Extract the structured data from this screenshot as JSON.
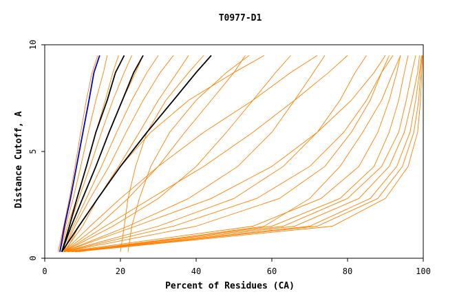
{
  "chart_data": {
    "type": "line",
    "title": "T0977-D1",
    "xlabel": "Percent of Residues (CA)",
    "ylabel": "Distance Cutoff, A",
    "xlim": [
      0,
      100
    ],
    "ylim": [
      0,
      10
    ],
    "xticks": [
      "0",
      "20",
      "40",
      "60",
      "80",
      "100"
    ],
    "yticks": [
      "0",
      "5",
      "10"
    ],
    "grid": false,
    "legend": "none",
    "series_colors": {
      "models": "#ff8000",
      "highlight_blue": "#0000cc",
      "highlight_black": "#000000"
    },
    "series": [
      {
        "color": "#ff8000",
        "x": [
          3.5,
          5,
          6.5,
          8,
          9.5,
          11,
          12.5,
          14
        ],
        "y": [
          0.3,
          1.5,
          2.8,
          4.3,
          5.9,
          7.4,
          8.7,
          9.5
        ]
      },
      {
        "color": "#ff8000",
        "x": [
          4,
          5.5,
          7.5,
          9.5,
          11.5,
          13.5,
          15.5,
          16.5
        ],
        "y": [
          0.3,
          1.5,
          2.8,
          4.3,
          5.9,
          7.4,
          8.7,
          9.5
        ]
      },
      {
        "color": "#ff8000",
        "x": [
          4,
          6,
          8.5,
          11,
          13.5,
          16,
          18,
          19.5
        ],
        "y": [
          0.3,
          1.5,
          2.8,
          4.3,
          5.9,
          7.4,
          8.7,
          9.5
        ]
      },
      {
        "color": "#ff8000",
        "x": [
          4.5,
          6.5,
          9,
          12,
          15,
          18,
          21,
          23
        ],
        "y": [
          0.3,
          1.5,
          2.8,
          4.3,
          5.9,
          7.4,
          8.7,
          9.5
        ]
      },
      {
        "color": "#ff8000",
        "x": [
          4.5,
          7,
          10,
          13.5,
          17,
          20.5,
          24,
          26
        ],
        "y": [
          0.3,
          1.5,
          2.8,
          4.3,
          5.9,
          7.4,
          8.7,
          9.5
        ]
      },
      {
        "color": "#ff8000",
        "x": [
          5,
          7.5,
          11,
          15,
          19,
          23,
          27,
          30
        ],
        "y": [
          0.3,
          1.5,
          2.8,
          4.3,
          5.9,
          7.4,
          8.7,
          9.5
        ]
      },
      {
        "color": "#ff8000",
        "x": [
          5,
          8,
          12,
          17,
          21.5,
          26,
          30.5,
          34
        ],
        "y": [
          0.3,
          1.5,
          2.8,
          4.3,
          5.9,
          7.4,
          8.7,
          9.5
        ]
      },
      {
        "color": "#ff8000",
        "x": [
          5.5,
          9,
          14,
          19.5,
          25,
          30,
          35,
          38
        ],
        "y": [
          0.3,
          1.5,
          2.8,
          4.3,
          5.9,
          7.4,
          8.7,
          9.5
        ]
      },
      {
        "color": "#ff8000",
        "x": [
          5,
          14,
          22,
          30,
          37,
          44,
          50,
          53
        ],
        "y": [
          0.3,
          1.5,
          2.8,
          4.3,
          5.9,
          7.4,
          8.7,
          9.5
        ]
      },
      {
        "color": "#ff8000",
        "x": [
          5,
          18,
          30,
          40,
          48,
          55,
          61,
          65
        ],
        "y": [
          0.3,
          1.5,
          2.8,
          4.3,
          5.9,
          7.4,
          8.7,
          9.5
        ]
      },
      {
        "color": "#ff8000",
        "x": [
          5,
          22,
          38,
          51,
          60,
          66,
          71,
          74
        ],
        "y": [
          0.3,
          1.5,
          2.8,
          4.3,
          5.9,
          7.4,
          8.7,
          9.5
        ]
      },
      {
        "color": "#ff8000",
        "x": [
          5,
          30,
          50,
          63,
          72,
          78,
          82,
          85
        ],
        "y": [
          0.3,
          1.5,
          2.8,
          4.3,
          5.9,
          7.4,
          8.7,
          9.5
        ]
      },
      {
        "color": "#ff8000",
        "x": [
          5,
          40,
          62,
          74,
          81,
          86,
          89,
          91
        ],
        "y": [
          0.3,
          1.5,
          2.8,
          4.3,
          5.9,
          7.4,
          8.7,
          9.5
        ]
      },
      {
        "color": "#ff8000",
        "x": [
          5,
          55,
          73,
          83,
          88,
          91,
          93,
          94
        ],
        "y": [
          0.3,
          1.5,
          2.8,
          4.3,
          5.9,
          7.4,
          8.7,
          9.5
        ]
      },
      {
        "color": "#ff8000",
        "x": [
          6,
          60,
          78,
          87,
          91,
          93.5,
          95,
          96
        ],
        "y": [
          0.3,
          1.5,
          2.8,
          4.3,
          5.9,
          7.4,
          8.7,
          9.5
        ]
      },
      {
        "color": "#ff8000",
        "x": [
          6,
          63,
          80,
          89,
          93.5,
          95.5,
          97,
          98
        ],
        "y": [
          0.3,
          1.5,
          2.8,
          4.3,
          5.9,
          7.4,
          8.7,
          9.5
        ]
      },
      {
        "color": "#ff8000",
        "x": [
          7,
          66,
          83,
          91,
          95,
          97,
          98.5,
          99
        ],
        "y": [
          0.3,
          1.5,
          2.8,
          4.3,
          5.9,
          7.4,
          8.7,
          9.5
        ]
      },
      {
        "color": "#ff8000",
        "x": [
          7,
          70,
          86,
          93,
          96.5,
          98,
          99,
          99.5
        ],
        "y": [
          0.3,
          1.5,
          2.8,
          4.3,
          5.9,
          7.4,
          8.7,
          9.5
        ]
      },
      {
        "color": "#ff8000",
        "x": [
          8,
          72,
          88,
          94.5,
          97.5,
          98.8,
          99.3,
          99.7
        ],
        "y": [
          0.3,
          1.5,
          2.8,
          4.3,
          5.9,
          7.4,
          8.7,
          9.5
        ]
      },
      {
        "color": "#ff8000",
        "x": [
          8,
          76,
          90,
          96,
          98.5,
          99.3,
          99.6,
          99.8
        ],
        "y": [
          0.3,
          1.5,
          2.8,
          4.3,
          5.9,
          7.4,
          8.7,
          9.5
        ]
      },
      {
        "color": "#ff8000",
        "x": [
          9,
          58,
          70,
          78,
          84,
          89,
          92,
          94
        ],
        "y": [
          0.3,
          1.5,
          2.8,
          4.3,
          5.9,
          7.4,
          8.7,
          9.5
        ]
      },
      {
        "color": "#ff8000",
        "x": [
          5,
          10,
          14,
          20,
          28,
          38,
          50,
          58
        ],
        "y": [
          0.3,
          1.5,
          2.8,
          4.3,
          5.9,
          7.4,
          8.7,
          9.5
        ]
      },
      {
        "color": "#ff8000",
        "x": [
          5,
          12,
          20,
          30,
          42,
          55,
          65,
          72
        ],
        "y": [
          0.3,
          1.5,
          2.8,
          4.3,
          5.9,
          7.4,
          8.7,
          9.5
        ]
      },
      {
        "color": "#ff8000",
        "x": [
          5,
          16,
          28,
          42,
          55,
          66,
          75,
          80
        ],
        "y": [
          0.3,
          1.5,
          2.8,
          4.3,
          5.9,
          7.4,
          8.7,
          9.5
        ]
      },
      {
        "color": "#ff8000",
        "x": [
          5,
          24,
          44,
          60,
          72,
          81,
          87,
          90
        ],
        "y": [
          0.3,
          1.5,
          2.8,
          4.3,
          5.9,
          7.4,
          8.7,
          9.5
        ]
      },
      {
        "color": "#ff8000",
        "x": [
          5,
          34,
          56,
          70,
          79,
          85,
          89,
          92
        ],
        "y": [
          0.3,
          1.5,
          2.8,
          4.3,
          5.9,
          7.4,
          8.7,
          9.5
        ]
      },
      {
        "color": "#ff8000",
        "x": [
          20,
          21,
          22,
          24,
          27,
          32,
          38,
          42
        ],
        "y": [
          0.3,
          1.5,
          2.8,
          4.3,
          5.9,
          7.4,
          8.7,
          9.5
        ]
      },
      {
        "color": "#ff8000",
        "x": [
          22,
          23,
          25,
          28,
          33,
          40,
          48,
          54
        ],
        "y": [
          0.3,
          1.5,
          2.8,
          4.3,
          5.9,
          7.4,
          8.7,
          9.5
        ]
      },
      {
        "color": "#0000cc",
        "x": [
          4,
          5.2,
          6.8,
          8.4,
          10.1,
          11.7,
          13,
          14.5
        ],
        "y": [
          0.3,
          1.5,
          2.8,
          4.3,
          5.9,
          7.4,
          8.7,
          9.5
        ]
      },
      {
        "color": "#000000",
        "x": [
          4.5,
          6.5,
          8.5,
          11,
          13.5,
          16.5,
          18.7,
          21
        ],
        "y": [
          0.3,
          1.5,
          2.8,
          4.3,
          5.9,
          7.4,
          8.7,
          9.5
        ]
      },
      {
        "color": "#000000",
        "x": [
          4.5,
          7,
          10,
          13.5,
          17,
          20.5,
          23.5,
          26
        ],
        "y": [
          0.3,
          1.5,
          2.8,
          4.3,
          5.9,
          7.4,
          8.7,
          9.5
        ]
      },
      {
        "color": "#000000",
        "x": [
          4.5,
          9,
          14,
          20,
          27,
          34,
          40,
          44
        ],
        "y": [
          0.3,
          1.5,
          2.8,
          4.3,
          5.9,
          7.4,
          8.7,
          9.5
        ]
      }
    ]
  }
}
